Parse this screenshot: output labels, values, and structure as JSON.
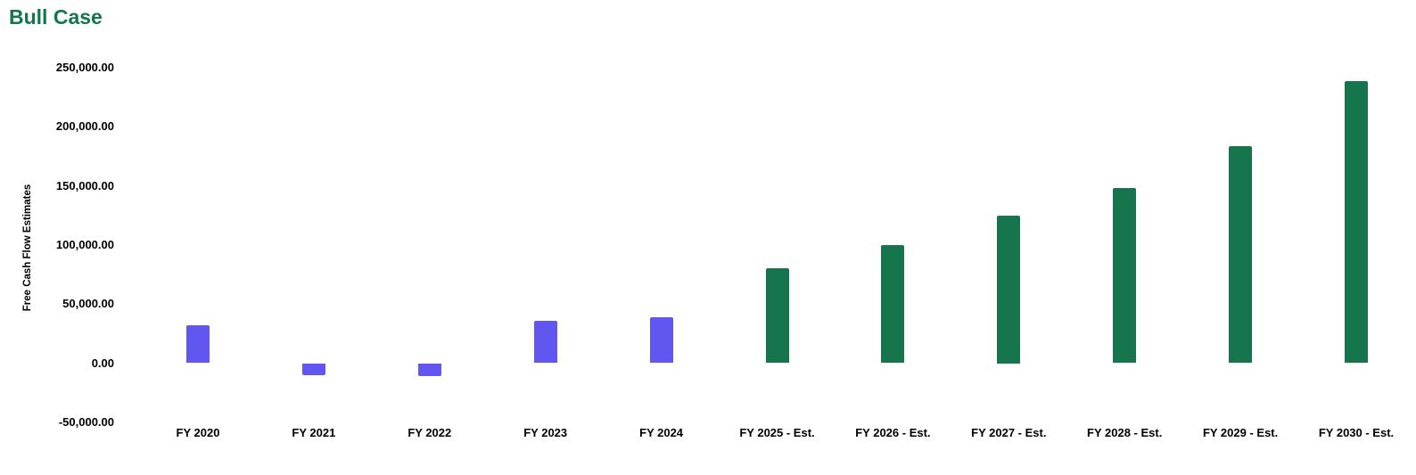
{
  "chart_data": {
    "type": "bar",
    "title": "Bull Case",
    "title_color": "#11764A",
    "xlabel": "",
    "ylabel": "Free Cash Flow Estimates",
    "grid": false,
    "legend_position": "none",
    "background_color": "#ffffff",
    "categories": [
      "FY 2020",
      "FY 2021",
      "FY 2022",
      "FY 2023",
      "FY 2024",
      "FY 2025 - Est.",
      "FY 2026 - Est.",
      "FY 2027 - Est.",
      "FY 2028 - Est.",
      "FY 2029 - Est.",
      "FY 2030 - Est."
    ],
    "values": [
      32000,
      -10000,
      -11200,
      35800,
      39000,
      80500,
      100000,
      125000,
      148400,
      183600,
      238900
    ],
    "bar_colors": [
      "#6156F0",
      "#6156F0",
      "#6156F0",
      "#6156F0",
      "#6156F0",
      "#17754D",
      "#17754D",
      "#17754D",
      "#17754D",
      "#17754D",
      "#17754D"
    ],
    "color_legend": {
      "actual_color": "#6156F0",
      "estimate_color": "#17754D"
    },
    "y_axis": {
      "tick_values": [
        250000,
        200000,
        150000,
        100000,
        50000,
        0,
        -50000
      ],
      "tick_labels": [
        "250,000.00",
        "200,000.00",
        "150,000.00",
        "100,000.00",
        "50,000.00",
        "0.00",
        "-50,000.00"
      ],
      "range": [
        -50000,
        250000
      ]
    }
  }
}
